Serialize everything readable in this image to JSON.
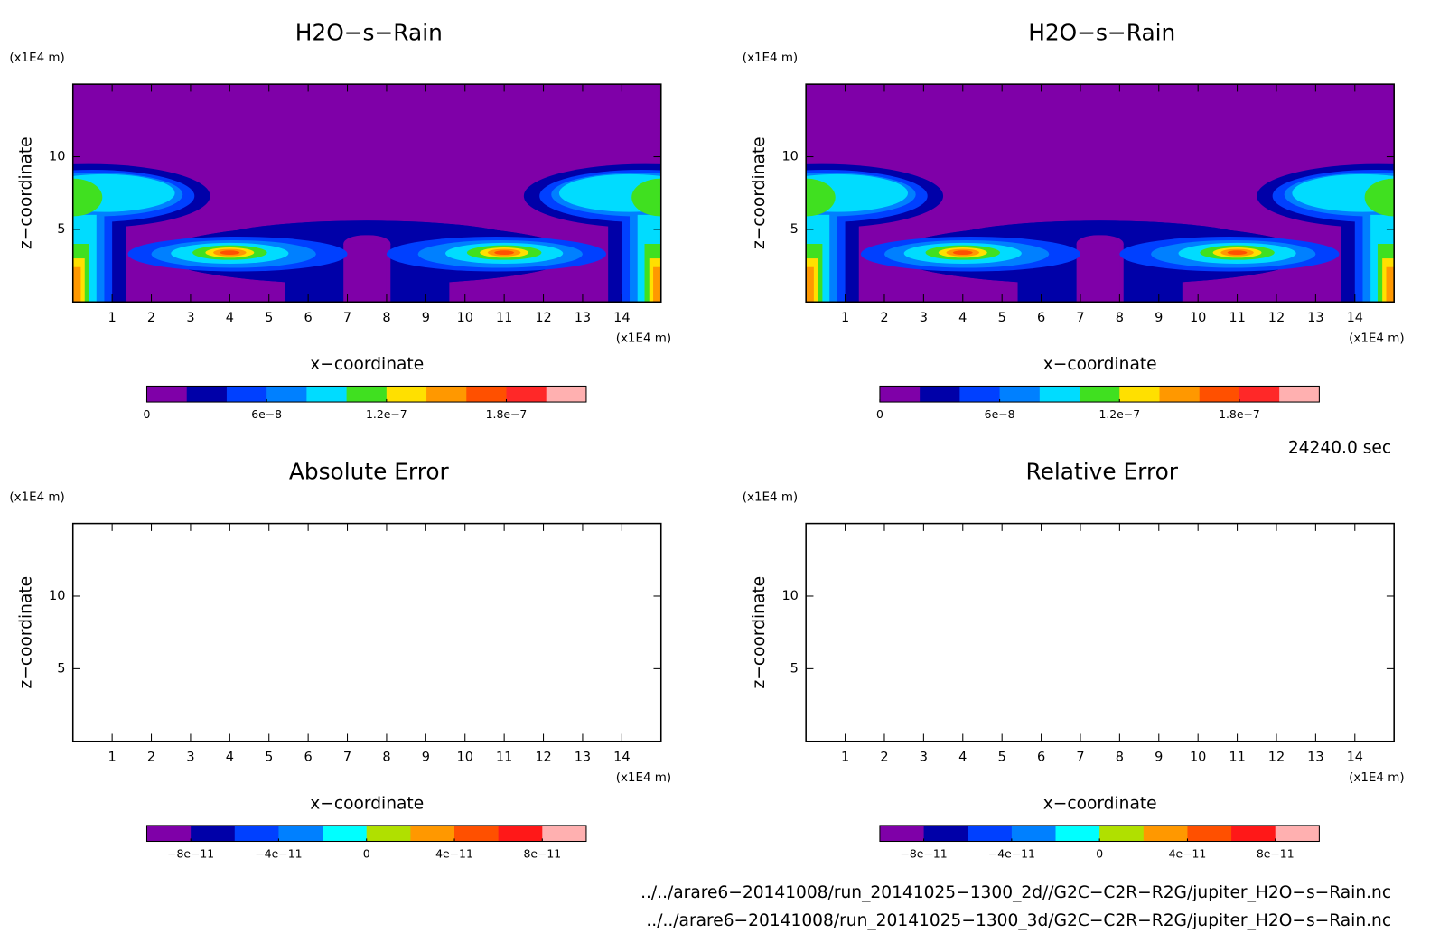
{
  "chart_data": [
    {
      "type": "contour",
      "title": "H2O−s−Rain",
      "x_label": "x−coordinate",
      "y_label": "z−coordinate",
      "x_unit": "(x1E4 m)",
      "y_unit": "(x1E4 m)",
      "xlim": [
        0,
        15
      ],
      "xticks": [
        1,
        2,
        3,
        4,
        5,
        6,
        7,
        8,
        9,
        10,
        11,
        12,
        13,
        14
      ],
      "ylim": [
        0,
        15
      ],
      "yticks": [
        5,
        10
      ],
      "colorbar": {
        "lim": [
          0,
          2.2e-07
        ],
        "colors": [
          "#7f00a8",
          "#0000a8",
          "#0040ff",
          "#0080ff",
          "#00dcff",
          "#40e020",
          "#ffe000",
          "#ff9800",
          "#ff5000",
          "#ff2828",
          "#ffb0b0"
        ],
        "ticks": [
          {
            "value": 0,
            "label": "0"
          },
          {
            "value": 6e-08,
            "label": "6e−8"
          },
          {
            "value": 1.2e-07,
            "label": "1.2e−7"
          },
          {
            "value": 1.8e-07,
            "label": "1.8e−7"
          }
        ]
      }
    },
    {
      "type": "contour",
      "title": "H2O−s−Rain",
      "x_label": "x−coordinate",
      "y_label": "z−coordinate",
      "x_unit": "(x1E4 m)",
      "y_unit": "(x1E4 m)",
      "xlim": [
        0,
        15
      ],
      "xticks": [
        1,
        2,
        3,
        4,
        5,
        6,
        7,
        8,
        9,
        10,
        11,
        12,
        13,
        14
      ],
      "ylim": [
        0,
        15
      ],
      "yticks": [
        5,
        10
      ],
      "colorbar": {
        "lim": [
          0,
          2.2e-07
        ],
        "colors": [
          "#7f00a8",
          "#0000a8",
          "#0040ff",
          "#0080ff",
          "#00dcff",
          "#40e020",
          "#ffe000",
          "#ff9800",
          "#ff5000",
          "#ff2828",
          "#ffb0b0"
        ],
        "ticks": [
          {
            "value": 0,
            "label": "0"
          },
          {
            "value": 6e-08,
            "label": "6e−8"
          },
          {
            "value": 1.2e-07,
            "label": "1.2e−7"
          },
          {
            "value": 1.8e-07,
            "label": "1.8e−7"
          }
        ]
      }
    },
    {
      "type": "contour",
      "title": "Absolute Error",
      "x_label": "x−coordinate",
      "y_label": "z−coordinate",
      "x_unit": "(x1E4 m)",
      "y_unit": "(x1E4 m)",
      "xlim": [
        0,
        15
      ],
      "xticks": [
        1,
        2,
        3,
        4,
        5,
        6,
        7,
        8,
        9,
        10,
        11,
        12,
        13,
        14
      ],
      "ylim": [
        0,
        15
      ],
      "yticks": [
        5,
        10
      ],
      "colorbar": {
        "lim": [
          -1e-10,
          1e-10
        ],
        "colors": [
          "#7f00a8",
          "#0000a8",
          "#0040ff",
          "#0080ff",
          "#00ffff",
          "#b0e000",
          "#ff9800",
          "#ff5000",
          "#ff1818",
          "#ffb0b0"
        ],
        "ticks": [
          {
            "value": -8e-11,
            "label": "−8e−11"
          },
          {
            "value": -4e-11,
            "label": "−4e−11"
          },
          {
            "value": 0,
            "label": "0"
          },
          {
            "value": 4e-11,
            "label": "4e−11"
          },
          {
            "value": 8e-11,
            "label": "8e−11"
          }
        ]
      }
    },
    {
      "type": "contour",
      "title": "Relative Error",
      "x_label": "x−coordinate",
      "y_label": "z−coordinate",
      "x_unit": "(x1E4 m)",
      "y_unit": "(x1E4 m)",
      "xlim": [
        0,
        15
      ],
      "xticks": [
        1,
        2,
        3,
        4,
        5,
        6,
        7,
        8,
        9,
        10,
        11,
        12,
        13,
        14
      ],
      "ylim": [
        0,
        15
      ],
      "yticks": [
        5,
        10
      ],
      "colorbar": {
        "lim": [
          -1e-10,
          1e-10
        ],
        "colors": [
          "#7f00a8",
          "#0000a8",
          "#0040ff",
          "#0080ff",
          "#00ffff",
          "#b0e000",
          "#ff9800",
          "#ff5000",
          "#ff1818",
          "#ffb0b0"
        ],
        "ticks": [
          {
            "value": -8e-11,
            "label": "−8e−11"
          },
          {
            "value": -4e-11,
            "label": "−4e−11"
          },
          {
            "value": 0,
            "label": "0"
          },
          {
            "value": 4e-11,
            "label": "4e−11"
          },
          {
            "value": 8e-11,
            "label": "8e−11"
          }
        ]
      }
    }
  ],
  "time": "24240.0 sec",
  "files": [
    "../../arare6−20141008/run_20141025−1300_2d//G2C−C2R−R2G/jupiter_H2O−s−Rain.nc",
    "../../arare6−20141008/run_20141025−1300_3d/G2C−C2R−R2G/jupiter_H2O−s−Rain.nc"
  ]
}
